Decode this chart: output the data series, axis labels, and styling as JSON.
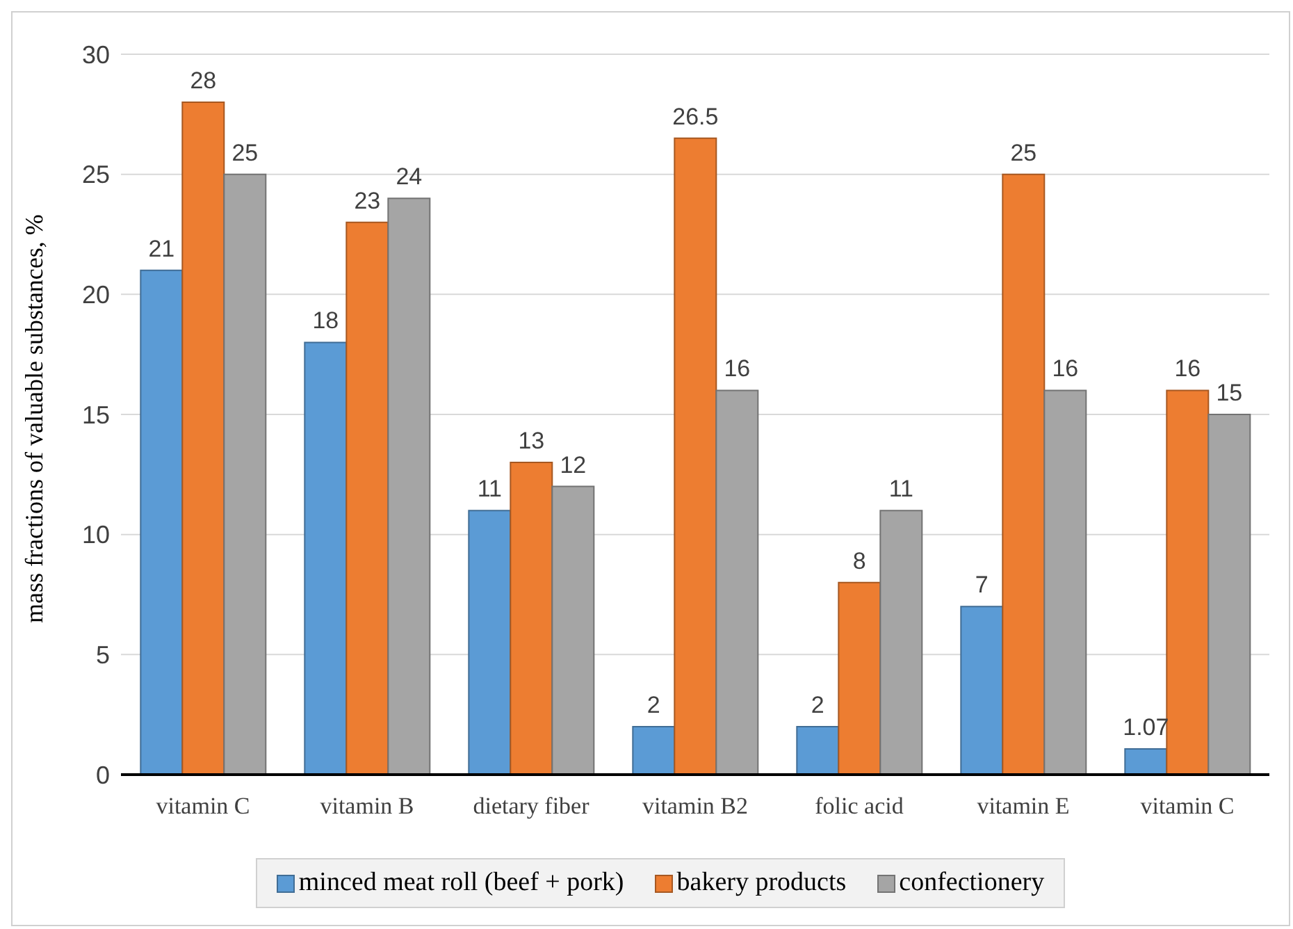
{
  "chart_data": {
    "type": "bar",
    "ylabel": "mass fractions of valuable substances, %",
    "categories": [
      "vitamin C",
      "vitamin B",
      "dietary fiber",
      "vitamin B2",
      "folic acid",
      "vitamin E",
      "vitamin C"
    ],
    "series": [
      {
        "name": "minced meat roll (beef + pork)",
        "color": "#5b9bd5",
        "values": [
          21,
          18,
          11,
          2,
          2,
          7,
          1.07
        ]
      },
      {
        "name": "bakery products",
        "color": "#ed7d31",
        "values": [
          28,
          23,
          13,
          26.5,
          8,
          25,
          16
        ]
      },
      {
        "name": "confectionery",
        "color": "#a5a5a5",
        "values": [
          25,
          24,
          12,
          16,
          11,
          16,
          15
        ]
      }
    ],
    "ylim": [
      0,
      30
    ],
    "yticks": [
      0,
      5,
      10,
      15,
      20,
      25,
      30
    ],
    "grid": "y",
    "legend": "bottom",
    "data_labels": true
  }
}
